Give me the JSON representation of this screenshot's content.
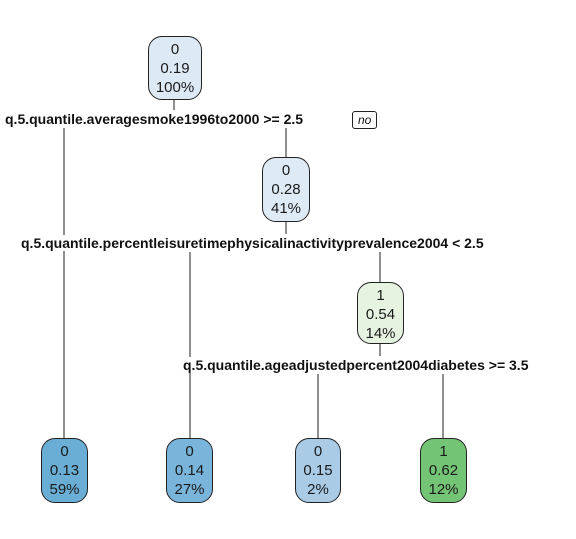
{
  "tree": {
    "nodes": {
      "root": {
        "class": "0",
        "prob": "0.19",
        "pct": "100%",
        "fill": "#dde9f5"
      },
      "n2": {
        "class": "0",
        "prob": "0.28",
        "pct": "41%",
        "fill": "#deebf7"
      },
      "n3": {
        "class": "1",
        "prob": "0.54",
        "pct": "14%",
        "fill": "#e6f3e0"
      },
      "leaf1": {
        "class": "0",
        "prob": "0.13",
        "pct": "59%",
        "fill": "#6aaed6"
      },
      "leaf2": {
        "class": "0",
        "prob": "0.14",
        "pct": "27%",
        "fill": "#79b5da"
      },
      "leaf3": {
        "class": "0",
        "prob": "0.15",
        "pct": "2%",
        "fill": "#a9cbe6"
      },
      "leaf4": {
        "class": "1",
        "prob": "0.62",
        "pct": "12%",
        "fill": "#74c476"
      }
    },
    "splits": {
      "s1": "q.5.quantile.averagesmoke1996to2000 >= 2.5",
      "s2": "q.5.quantile.percentleisuretimephysicalinactivityprevalence2004 < 2.5",
      "s3": "q.5.quantile.ageadjustedpercent2004diabetes >= 3.5"
    },
    "no_label": "no"
  }
}
